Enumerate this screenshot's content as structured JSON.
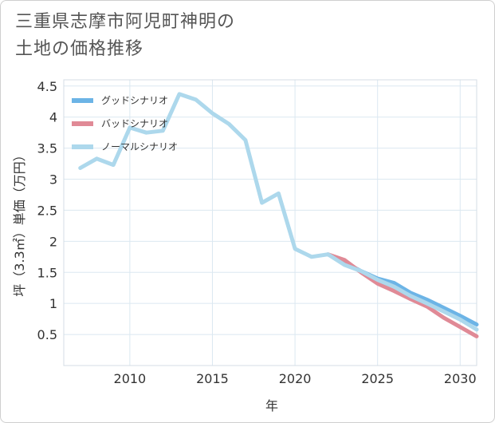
{
  "title_line1": "三重県志摩市阿児町神明の",
  "title_line2": "土地の価格推移",
  "chart_data": {
    "type": "line",
    "xlabel": "年",
    "ylabel": "坪（3.3㎡）単価（万円）",
    "xlim": [
      2006,
      2031
    ],
    "ylim": [
      0,
      4.6
    ],
    "xticks": [
      2010,
      2015,
      2020,
      2025,
      2030
    ],
    "yticks": [
      0.5,
      1,
      1.5,
      2,
      2.5,
      3,
      3.5,
      4,
      4.5
    ],
    "xtick_labels": [
      "2010",
      "2015",
      "2020",
      "2025",
      "2030"
    ],
    "ytick_labels": [
      "0.5",
      "1",
      "1.5",
      "2",
      "2.5",
      "3",
      "3.5",
      "4",
      "4.5"
    ],
    "grid": true,
    "legend_position": "top-left",
    "series": [
      {
        "name": "グッドシナリオ",
        "color": "#6cb4e6",
        "x": [
          2022,
          2023,
          2024,
          2025,
          2026,
          2027,
          2028,
          2029,
          2030,
          2031
        ],
        "values": [
          1.79,
          1.66,
          1.52,
          1.4,
          1.33,
          1.17,
          1.06,
          0.93,
          0.8,
          0.66
        ]
      },
      {
        "name": "バッドシナリオ",
        "color": "#e08a96",
        "x": [
          2022,
          2023,
          2024,
          2025,
          2026,
          2027,
          2028,
          2029,
          2030,
          2031
        ],
        "values": [
          1.79,
          1.7,
          1.5,
          1.32,
          1.2,
          1.07,
          0.95,
          0.77,
          0.62,
          0.47
        ]
      },
      {
        "name": "ノーマルシナリオ",
        "color": "#add8ec",
        "x": [
          2007,
          2008,
          2009,
          2010,
          2011,
          2012,
          2013,
          2014,
          2015,
          2016,
          2017,
          2018,
          2019,
          2020,
          2021,
          2022,
          2023,
          2024,
          2025,
          2026,
          2027,
          2028,
          2029,
          2030,
          2031
        ],
        "values": [
          3.18,
          3.33,
          3.23,
          3.83,
          3.75,
          3.78,
          4.37,
          4.28,
          4.06,
          3.89,
          3.63,
          2.62,
          2.77,
          1.88,
          1.75,
          1.79,
          1.62,
          1.52,
          1.38,
          1.27,
          1.12,
          1.0,
          0.87,
          0.74,
          0.58
        ]
      }
    ]
  }
}
